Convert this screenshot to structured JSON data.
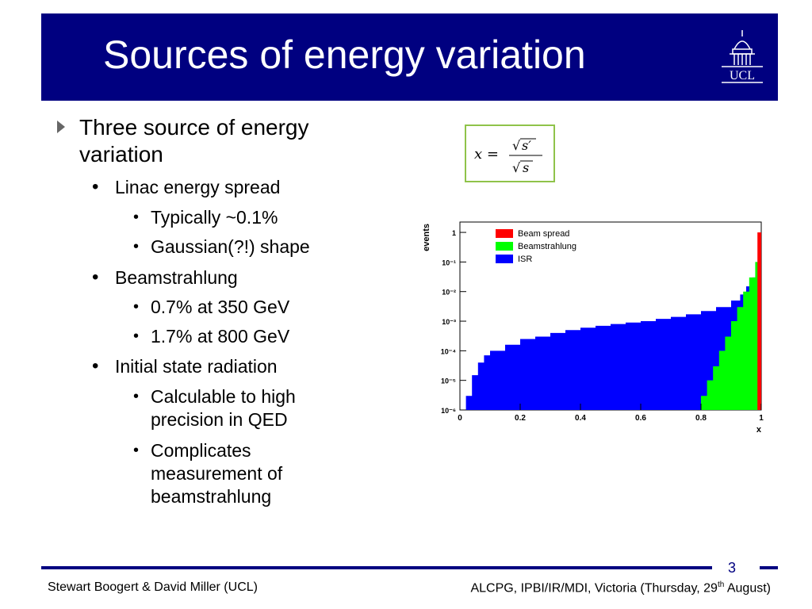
{
  "header": {
    "title": "Sources of energy variation",
    "logo_text": "UCL",
    "logo_icon": "ucl-dome-logo"
  },
  "content": {
    "bullets": [
      {
        "text": "Three source of energy variation"
      },
      {
        "text": "Linac energy spread"
      },
      {
        "text": "Typically ~0.1%"
      },
      {
        "text": "Gaussian(?!) shape"
      },
      {
        "text": "Beamstrahlung"
      },
      {
        "text": "0.7% at 350 GeV"
      },
      {
        "text": "1.7% at 800 GeV"
      },
      {
        "text": "Initial state radiation"
      },
      {
        "text": "Calculable to high precision in QED"
      },
      {
        "text": "Complicates measurement of beamstrahlung"
      }
    ],
    "bullet_dot": "•"
  },
  "formula": {
    "lhs": "x =",
    "numerator": "s′",
    "denominator": "s",
    "sqrt": "√"
  },
  "chart_data": {
    "type": "area",
    "xlabel": "x",
    "ylabel": "events",
    "log_y": true,
    "xlim": [
      0,
      1
    ],
    "x_ticks": [
      "0",
      "0.2",
      "0.4",
      "0.6",
      "0.8",
      "1"
    ],
    "y_ticks": [
      "10⁻⁶",
      "10⁻⁵",
      "10⁻⁴",
      "10⁻³",
      "10⁻²",
      "10⁻¹",
      "1"
    ],
    "legend_position": "top-left",
    "series": [
      {
        "name": "Beam spread",
        "color": "#ff0000",
        "x": [
          0.99
        ],
        "y": [
          1
        ]
      },
      {
        "name": "Beamstrahlung",
        "color": "#00ff00",
        "x": [
          0.78,
          0.8,
          0.82,
          0.84,
          0.86,
          0.88,
          0.9,
          0.92,
          0.94,
          0.96,
          0.98,
          0.99
        ],
        "y": [
          1e-06,
          3e-06,
          1e-05,
          3e-05,
          0.0001,
          0.0003,
          0.001,
          0.003,
          0.01,
          0.03,
          0.1,
          0.3
        ]
      },
      {
        "name": "ISR",
        "color": "#0000ff",
        "x": [
          0.01,
          0.02,
          0.04,
          0.06,
          0.08,
          0.1,
          0.15,
          0.2,
          0.25,
          0.3,
          0.35,
          0.4,
          0.45,
          0.5,
          0.55,
          0.6,
          0.65,
          0.7,
          0.75,
          0.8,
          0.85,
          0.9,
          0.93,
          0.95,
          0.97,
          0.99
        ],
        "y": [
          1e-06,
          3e-06,
          1.5e-05,
          4e-05,
          7e-05,
          0.0001,
          0.00016,
          0.00025,
          0.0003,
          0.0004,
          0.0005,
          0.0006,
          0.0007,
          0.0008,
          0.0009,
          0.001,
          0.0012,
          0.0014,
          0.0017,
          0.0022,
          0.003,
          0.005,
          0.008,
          0.015,
          0.03,
          0.1
        ]
      }
    ]
  },
  "footer": {
    "page_number": "3",
    "left": "Stewart Boogert & David Miller (UCL)",
    "right_main": "ALCPG, IPBI/IR/MDI, Victoria (Thursday, 29",
    "right_sup": "th",
    "right_end": " August)"
  }
}
